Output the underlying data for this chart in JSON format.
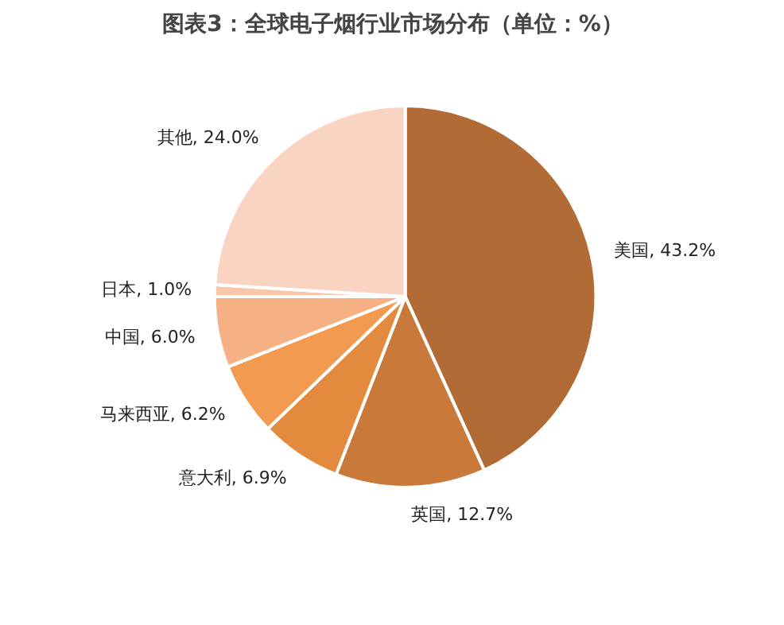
{
  "chart_data": {
    "type": "pie",
    "title": "图表3：全球电子烟行业市场分布（单位：%）",
    "categories": [
      "美国",
      "英国",
      "意大利",
      "马来西亚",
      "中国",
      "日本",
      "其他"
    ],
    "values": [
      43.2,
      12.7,
      6.9,
      6.2,
      6.0,
      1.0,
      24.0
    ],
    "value_labels": [
      "43.2%",
      "12.7%",
      "6.9%",
      "6.2%",
      "6.0%",
      "1.0%",
      "24.0%"
    ],
    "colors": [
      "#b26b34",
      "#c97a3b",
      "#e48a3e",
      "#f29a50",
      "#f5b184",
      "#f8c6a8",
      "#f9d4c2"
    ]
  }
}
